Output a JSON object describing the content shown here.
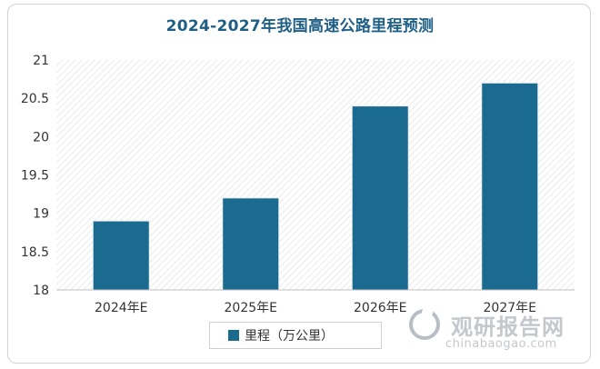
{
  "chart_data": {
    "type": "bar",
    "title": "2024-2027年我国高速公路里程预测",
    "categories": [
      "2024年E",
      "2025年E",
      "2026年E",
      "2027年E"
    ],
    "series": [
      {
        "name": "里程（万公里）",
        "values": [
          18.9,
          19.2,
          20.4,
          20.7
        ],
        "color": "#1a6b8f"
      }
    ],
    "y_ticks": [
      "18",
      "18.5",
      "19",
      "19.5",
      "20",
      "20.5",
      "21"
    ],
    "ylim": [
      18,
      21
    ],
    "grid": false,
    "plot_background": "hatched",
    "legend_position": "bottom"
  },
  "watermark": {
    "name_cn": "观研报告网",
    "url": "chinabaogao.com"
  }
}
